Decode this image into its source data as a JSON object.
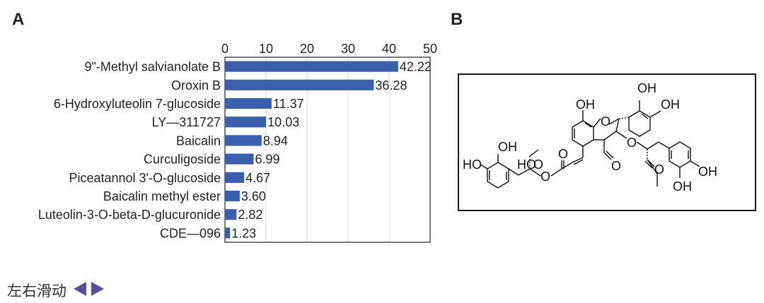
{
  "panel_a_label": "A",
  "panel_b_label": "B",
  "chart_data": {
    "type": "bar",
    "orientation": "horizontal",
    "categories": [
      "9\"-Methyl salvianolate B",
      "Oroxin B",
      "6-Hydroxyluteolin 7-glucoside",
      "LY—311727",
      "Baicalin",
      "Curculigoside",
      "Piceatannol 3'-O-glucoside",
      "Baicalin methyl ester",
      "Luteolin-3-O-beta-D-glucuronide",
      "CDE—096"
    ],
    "values": [
      42.22,
      36.28,
      11.37,
      10.03,
      8.94,
      6.99,
      4.67,
      3.6,
      2.82,
      1.23
    ],
    "value_labels": [
      "42.22",
      "36.28",
      "11.37",
      "10.03",
      "8.94",
      "6.99",
      "4.67",
      "3.60",
      "2.82",
      "1.23"
    ],
    "xlim": [
      0,
      50
    ],
    "xticks": [
      "0",
      "10",
      "20",
      "30",
      "40",
      "50"
    ],
    "x_axis_position": "top",
    "grid": true,
    "bar_color": "#3a60ad",
    "title": "",
    "xlabel": "",
    "ylabel": ""
  },
  "structure_labels": {
    "oh_top1": "OH",
    "oh_top2": "OH",
    "oh_left": "OH",
    "o_ring": "O",
    "oh_far_left_a": "OH",
    "ho_far_left": "HO",
    "hooc": "HO",
    "o_acid": "O",
    "o_ester_left": "O",
    "o_carbonyl_left": "O",
    "o_ester_right": "O",
    "o_carbonyl_right": "O",
    "o_methyl": "O",
    "o_methyl2": "O",
    "oh_right": "OH",
    "oh_right2": "OH"
  },
  "navigation": {
    "label": "左右滑动",
    "prev_icon": "triangle-left-icon",
    "next_icon": "triangle-right-icon",
    "arrow_color": "#5a4f9a"
  }
}
